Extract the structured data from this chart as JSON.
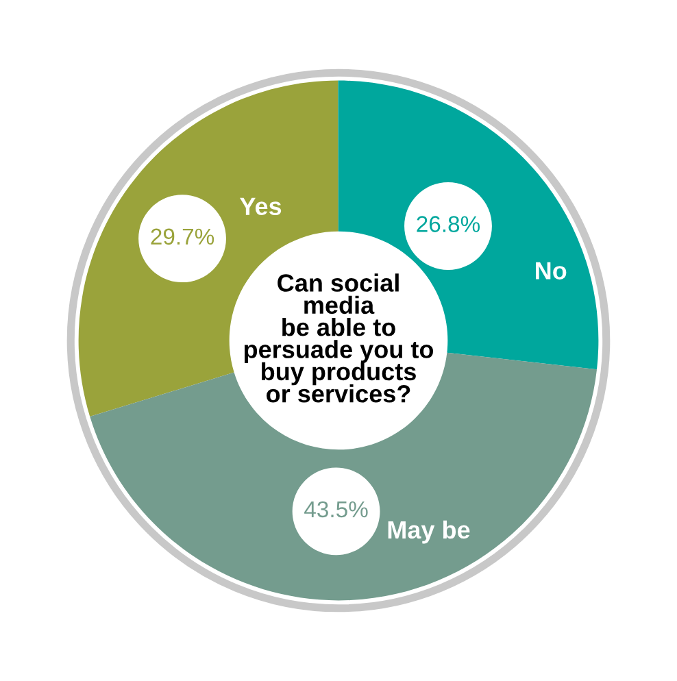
{
  "chart_data": {
    "type": "donut",
    "title": "Can social\nmedia\nbe able to\npersuade you to\nbuy products\nor services?",
    "categories": [
      "Yes",
      "No",
      "May be"
    ],
    "values": [
      29.7,
      26.8,
      43.5
    ],
    "value_labels": [
      "29.7%",
      "26.8%",
      "43.5%"
    ],
    "colors": [
      "#9aa33b",
      "#00a79d",
      "#749c8e"
    ],
    "legend": false
  }
}
